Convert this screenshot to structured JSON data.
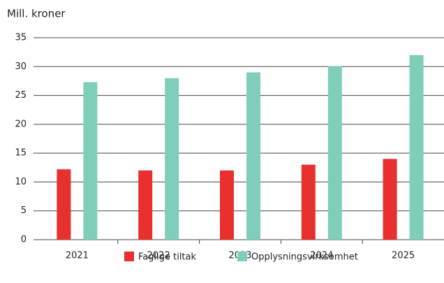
{
  "chart_data": {
    "type": "bar",
    "y_label": "Mill. kroner",
    "categories": [
      "2021",
      "2022",
      "2023",
      "2024",
      "2025"
    ],
    "series": [
      {
        "name": "Faglige tiltak",
        "color": "#e8302e",
        "values": [
          12.2,
          12.0,
          12.0,
          13.0,
          14.0
        ]
      },
      {
        "name": "Opplysningsvirksomhet",
        "color": "#7fcdbb",
        "values": [
          27.3,
          28.0,
          29.0,
          30.1,
          32.0
        ]
      }
    ],
    "ylim": [
      0,
      35
    ],
    "yticks": [
      0,
      5,
      10,
      15,
      20,
      25,
      30,
      35
    ],
    "grid": true,
    "legend": "bottom"
  }
}
